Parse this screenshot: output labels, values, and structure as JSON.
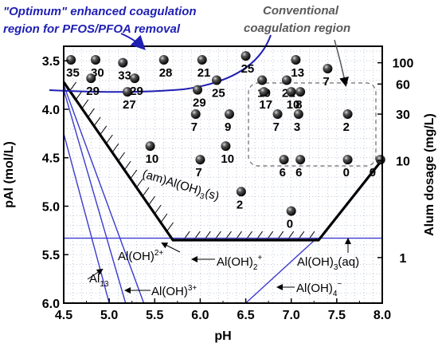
{
  "chart_data": {
    "type": "scatter",
    "xlabel": "pH",
    "ylabel": "pAl (mol/L)",
    "y2label": "Alum dosage (mg/L)",
    "xlim": [
      4.5,
      8.0
    ],
    "ylim": [
      3.35,
      6.0
    ],
    "y_inverted": true,
    "x_ticks": [
      "4.5",
      "5.0",
      "5.5",
      "6.0",
      "6.5",
      "7.0",
      "7.5",
      "8.0"
    ],
    "y_ticks": [
      "3.5",
      "4.0",
      "4.5",
      "5.0",
      "5.5",
      "6.0"
    ],
    "y2_ticks": [
      {
        "label": "100",
        "pAl": 3.52
      },
      {
        "label": "60",
        "pAl": 3.74
      },
      {
        "label": "30",
        "pAl": 4.05
      },
      {
        "label": "10",
        "pAl": 4.53
      },
      {
        "label": "1",
        "pAl": 5.53
      }
    ],
    "grid": true,
    "annotations": {
      "optimum_line1": "\"Optimum\" enhanced coagulation",
      "optimum_line2": "region for PFOS/PFOA removal",
      "conventional_line1": "Conventional",
      "conventional_line2": "coagulation region"
    },
    "species": {
      "amorphous": "(am)Al(OH)",
      "amorphous_sub": "3",
      "amorphous_tail": "(s)",
      "aloh2": "Al(OH)",
      "aloh2_sup": "2+",
      "aloh2plus": "Al(OH)",
      "aloh2plus_sub": "2",
      "aloh2plus_sup": "+",
      "aloh3aq": "Al(OH)",
      "aloh3aq_sub": "3",
      "aloh3aq_tail": "(aq)",
      "al13": "Al",
      "al13_sub": "13",
      "aloh3plus": "Al(OH)",
      "aloh3plus_sup": "3+",
      "aloh4": "Al(OH)",
      "aloh4_sub": "4",
      "aloh4_sup": "−"
    },
    "points": [
      {
        "label": "35",
        "x": 4.58,
        "y": 3.49
      },
      {
        "label": "30",
        "x": 4.85,
        "y": 3.49
      },
      {
        "label": "33",
        "x": 5.15,
        "y": 3.52
      },
      {
        "label": "28",
        "x": 5.6,
        "y": 3.49
      },
      {
        "label": "21",
        "x": 6.02,
        "y": 3.49
      },
      {
        "label": "25",
        "x": 6.5,
        "y": 3.45
      },
      {
        "label": "13",
        "x": 7.05,
        "y": 3.49
      },
      {
        "label": "7",
        "x": 7.4,
        "y": 3.58
      },
      {
        "label": "29",
        "x": 4.8,
        "y": 3.68
      },
      {
        "label": "29",
        "x": 5.28,
        "y": 3.68
      },
      {
        "label": "25",
        "x": 6.18,
        "y": 3.7
      },
      {
        "label": "19",
        "x": 6.68,
        "y": 3.7
      },
      {
        "label": "21",
        "x": 6.95,
        "y": 3.7
      },
      {
        "label": "27",
        "x": 5.2,
        "y": 3.82
      },
      {
        "label": "29",
        "x": 5.97,
        "y": 3.8
      },
      {
        "label": "17",
        "x": 6.7,
        "y": 3.82
      },
      {
        "label": "10",
        "x": 7.0,
        "y": 3.82
      },
      {
        "label": "8",
        "x": 7.1,
        "y": 3.82
      },
      {
        "label": "7",
        "x": 5.95,
        "y": 4.05
      },
      {
        "label": "9",
        "x": 6.32,
        "y": 4.05
      },
      {
        "label": "7",
        "x": 6.85,
        "y": 4.05
      },
      {
        "label": "3",
        "x": 7.08,
        "y": 4.05
      },
      {
        "label": "2",
        "x": 7.62,
        "y": 4.05
      },
      {
        "label": "10",
        "x": 5.45,
        "y": 4.38
      },
      {
        "label": "10",
        "x": 6.28,
        "y": 4.38
      },
      {
        "label": "7",
        "x": 6.0,
        "y": 4.52
      },
      {
        "label": "6",
        "x": 6.92,
        "y": 4.52
      },
      {
        "label": "6",
        "x": 7.1,
        "y": 4.52
      },
      {
        "label": "0",
        "x": 7.62,
        "y": 4.52
      },
      {
        "label": "0",
        "x": 7.98,
        "y": 4.52
      },
      {
        "label": "2",
        "x": 6.45,
        "y": 4.85
      },
      {
        "label": "0",
        "x": 7.0,
        "y": 5.05
      }
    ]
  }
}
